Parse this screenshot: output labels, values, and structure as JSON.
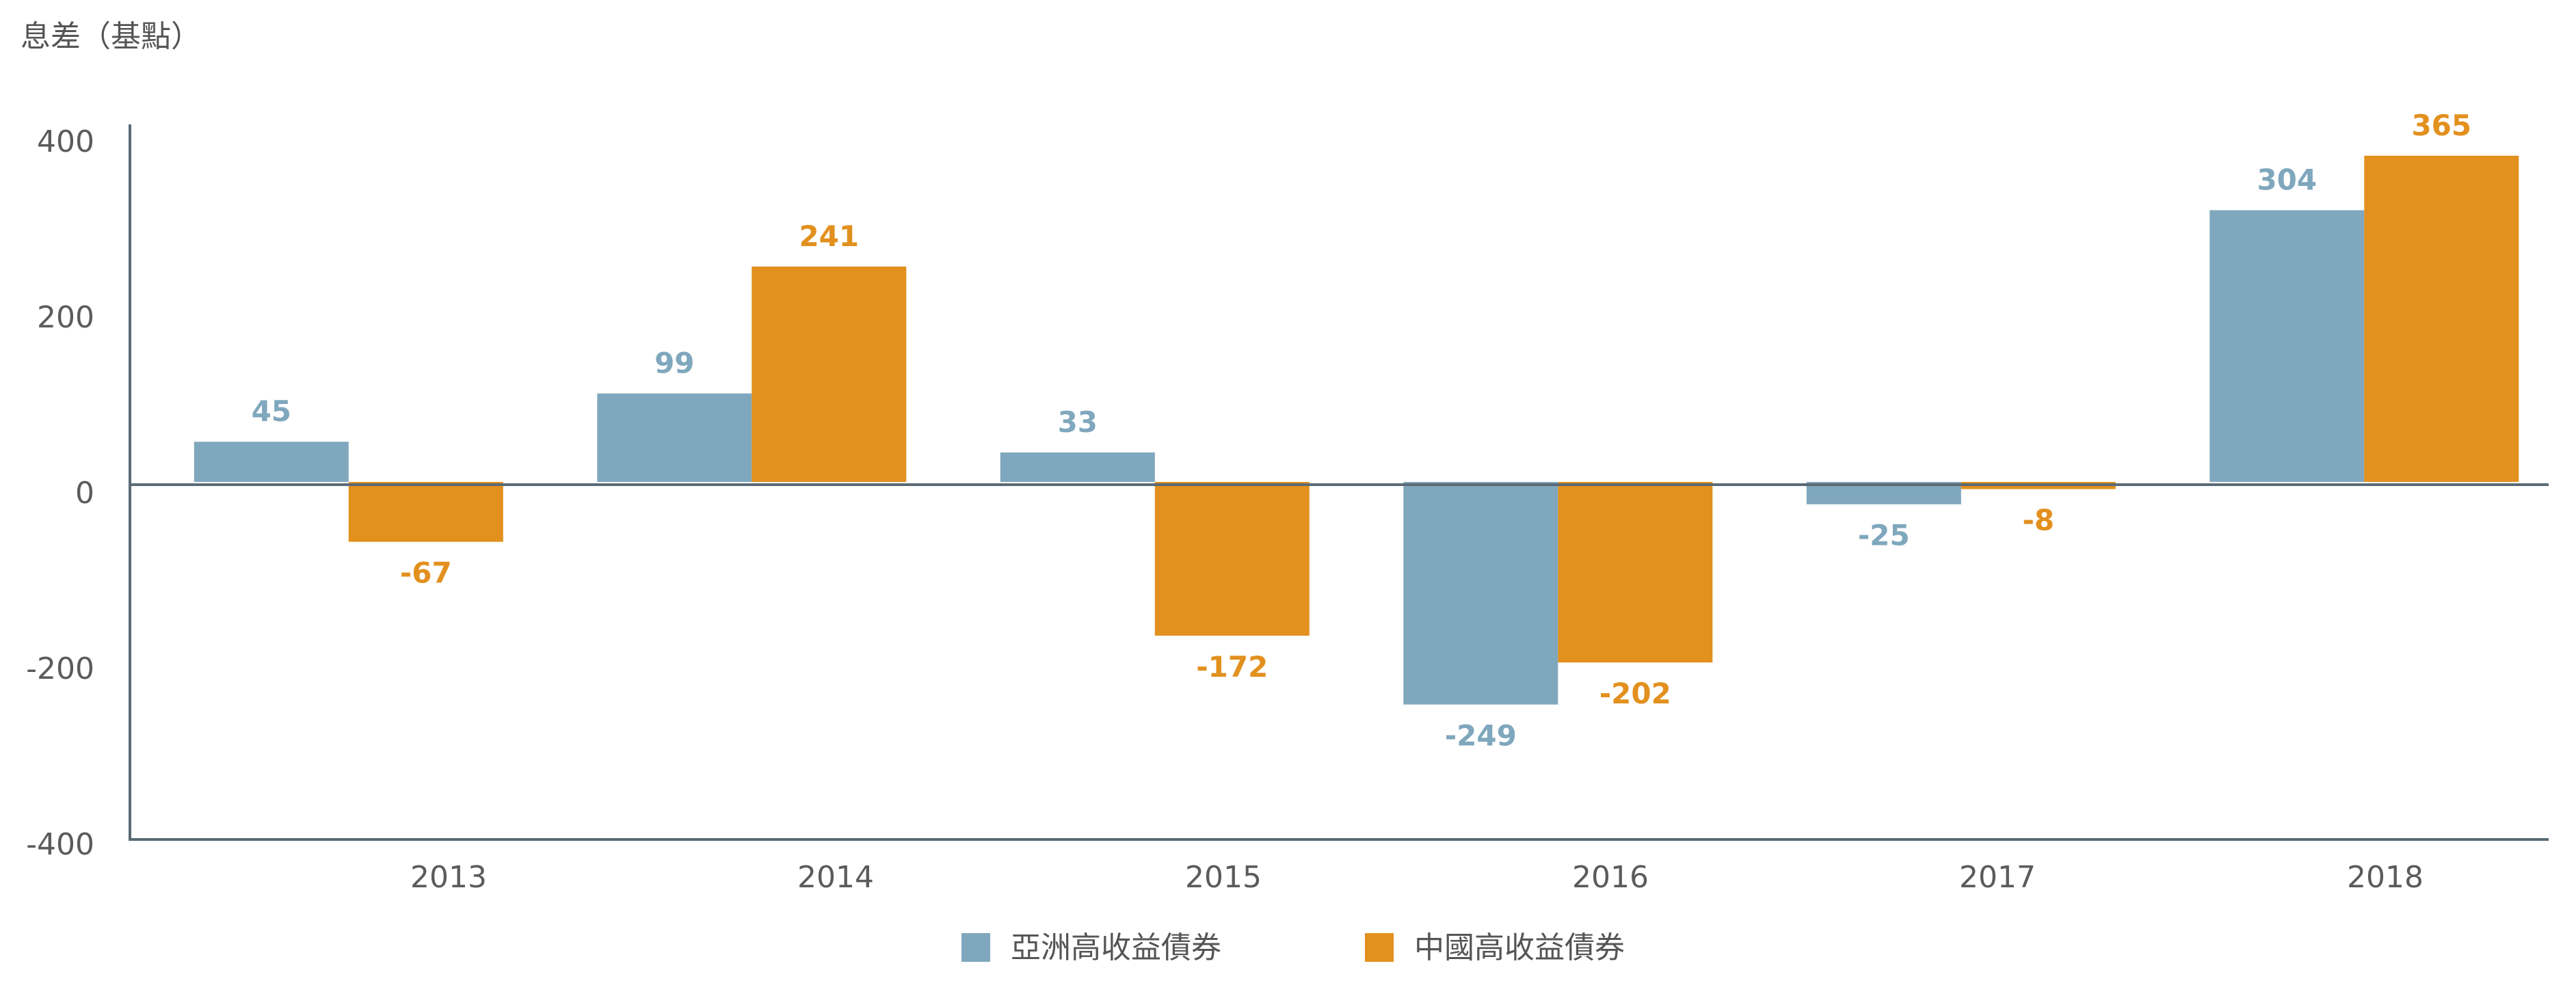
{
  "chart_data": {
    "type": "bar",
    "title": "",
    "ylabel": "息差（基點）",
    "xlabel": "",
    "categories": [
      "2013",
      "2014",
      "2015",
      "2016",
      "2017",
      "2018"
    ],
    "series": [
      {
        "name": "亞洲高收益債券",
        "color": "#7fa7bd",
        "values": [
          45,
          99,
          33,
          -249,
          -25,
          304
        ]
      },
      {
        "name": "中國高收益債券",
        "color": "#e2901e",
        "values": [
          -67,
          241,
          -172,
          -202,
          -8,
          365
        ]
      }
    ],
    "yticks": [
      "400",
      "200",
      "0",
      "-200",
      "-400"
    ],
    "ylim": [
      -400,
      400
    ],
    "legend_position": "bottom-center",
    "grid": false,
    "axis_color": "#5a6a75"
  }
}
